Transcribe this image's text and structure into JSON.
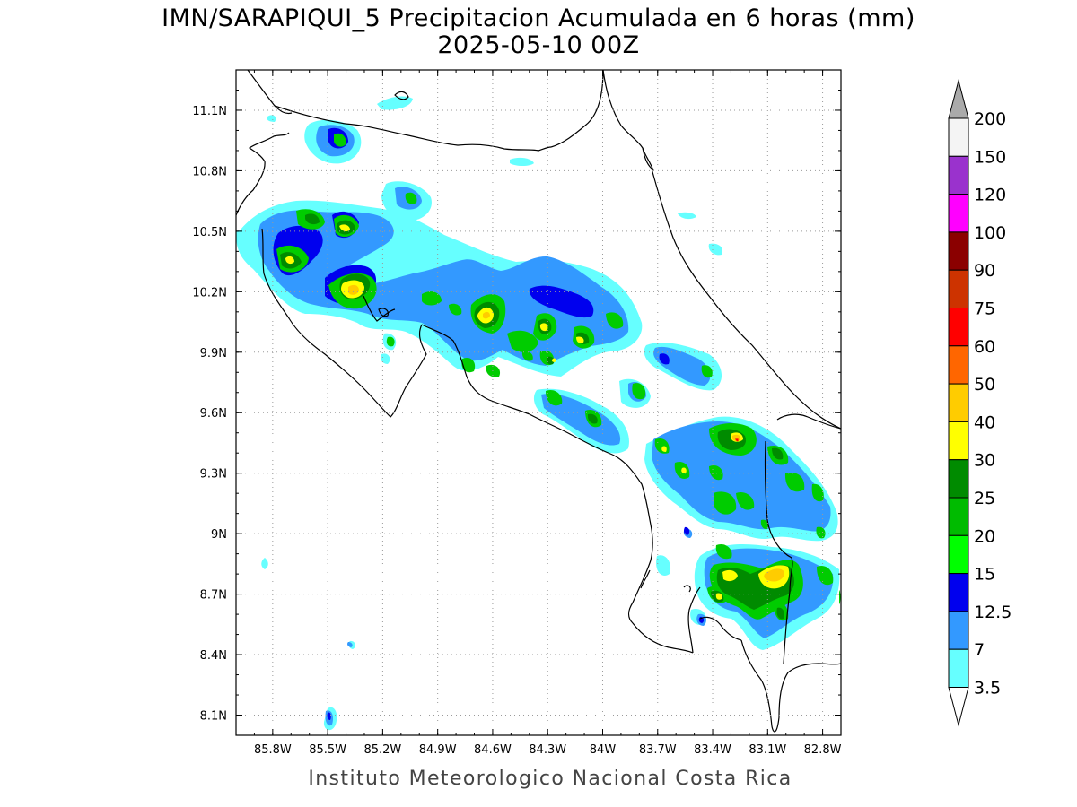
{
  "title": "IMN/SARAPIQUI_5 Precipitacion Acumulada en 6 horas (mm)",
  "subtitle": "2025-05-10 00Z",
  "footer": "Instituto Meteorologico Nacional Costa Rica",
  "map": {
    "lon_range": [
      -86.0,
      -82.7
    ],
    "lat_range": [
      8.0,
      11.3
    ],
    "lon_ticks": [
      {
        "value": -85.8,
        "label": "85.8W"
      },
      {
        "value": -85.5,
        "label": "85.5W"
      },
      {
        "value": -85.2,
        "label": "85.2W"
      },
      {
        "value": -84.9,
        "label": "84.9W"
      },
      {
        "value": -84.6,
        "label": "84.6W"
      },
      {
        "value": -84.3,
        "label": "84.3W"
      },
      {
        "value": -84.0,
        "label": "84W"
      },
      {
        "value": -83.7,
        "label": "83.7W"
      },
      {
        "value": -83.4,
        "label": "83.4W"
      },
      {
        "value": -83.1,
        "label": "83.1W"
      },
      {
        "value": -82.8,
        "label": "82.8W"
      }
    ],
    "lat_ticks": [
      {
        "value": 11.1,
        "label": "11.1N"
      },
      {
        "value": 10.8,
        "label": "10.8N"
      },
      {
        "value": 10.5,
        "label": "10.5N"
      },
      {
        "value": 10.2,
        "label": "10.2N"
      },
      {
        "value": 9.9,
        "label": "9.9N"
      },
      {
        "value": 9.6,
        "label": "9.6N"
      },
      {
        "value": 9.3,
        "label": "9.3N"
      },
      {
        "value": 9.0,
        "label": "9N"
      },
      {
        "value": 8.7,
        "label": "8.7N"
      },
      {
        "value": 8.4,
        "label": "8.4N"
      },
      {
        "value": 8.1,
        "label": "8.1N"
      }
    ],
    "grid": true
  },
  "legend": {
    "labels": [
      "200",
      "150",
      "120",
      "100",
      "90",
      "75",
      "60",
      "50",
      "40",
      "30",
      "25",
      "20",
      "15",
      "12.5",
      "7",
      "3.5"
    ],
    "colors": [
      "#aaaaaa",
      "#f4f4f4",
      "#9a32cd",
      "#ff00ff",
      "#8b0000",
      "#cd3300",
      "#ff0000",
      "#ff6600",
      "#ffcc00",
      "#ffff00",
      "#008b00",
      "#00bb00",
      "#00ff00",
      "#0000ee",
      "#3399ff",
      "#66ffff",
      "#ffffff"
    ]
  }
}
